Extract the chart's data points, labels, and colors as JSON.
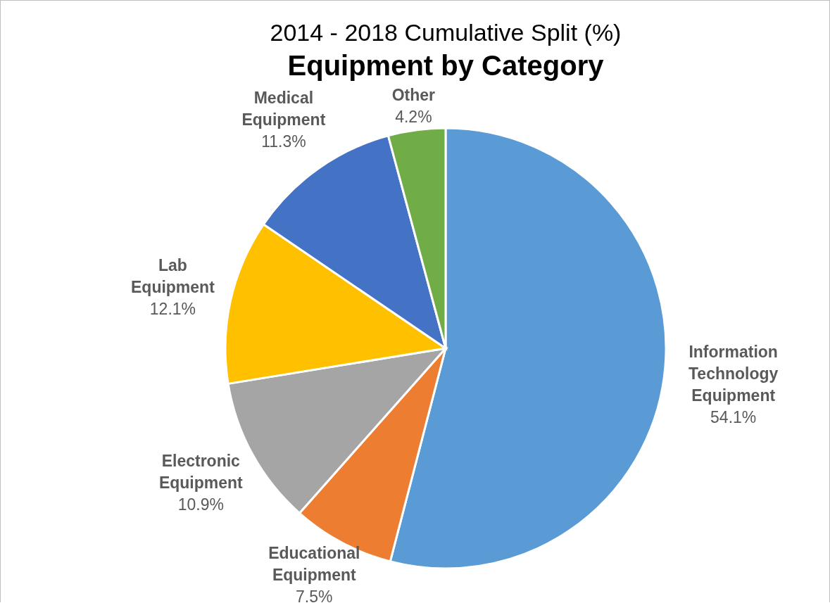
{
  "chart_data": {
    "type": "pie",
    "title": "Equipment by Category",
    "subtitle": "2014 - 2018 Cumulative Split (%)",
    "categories": [
      "Information Technology Equipment",
      "Educational Equipment",
      "Electronic Equipment",
      "Lab Equipment",
      "Medical Equipment",
      "Other"
    ],
    "values": [
      54.1,
      7.5,
      10.9,
      12.1,
      11.3,
      4.2
    ],
    "colors": [
      "#5b9bd5",
      "#ed7d31",
      "#a5a5a5",
      "#ffc000",
      "#4472c4",
      "#70ad47"
    ],
    "value_labels": [
      "54.1%",
      "7.5%",
      "10.9%",
      "12.1%",
      "11.3%",
      "4.2%"
    ]
  }
}
